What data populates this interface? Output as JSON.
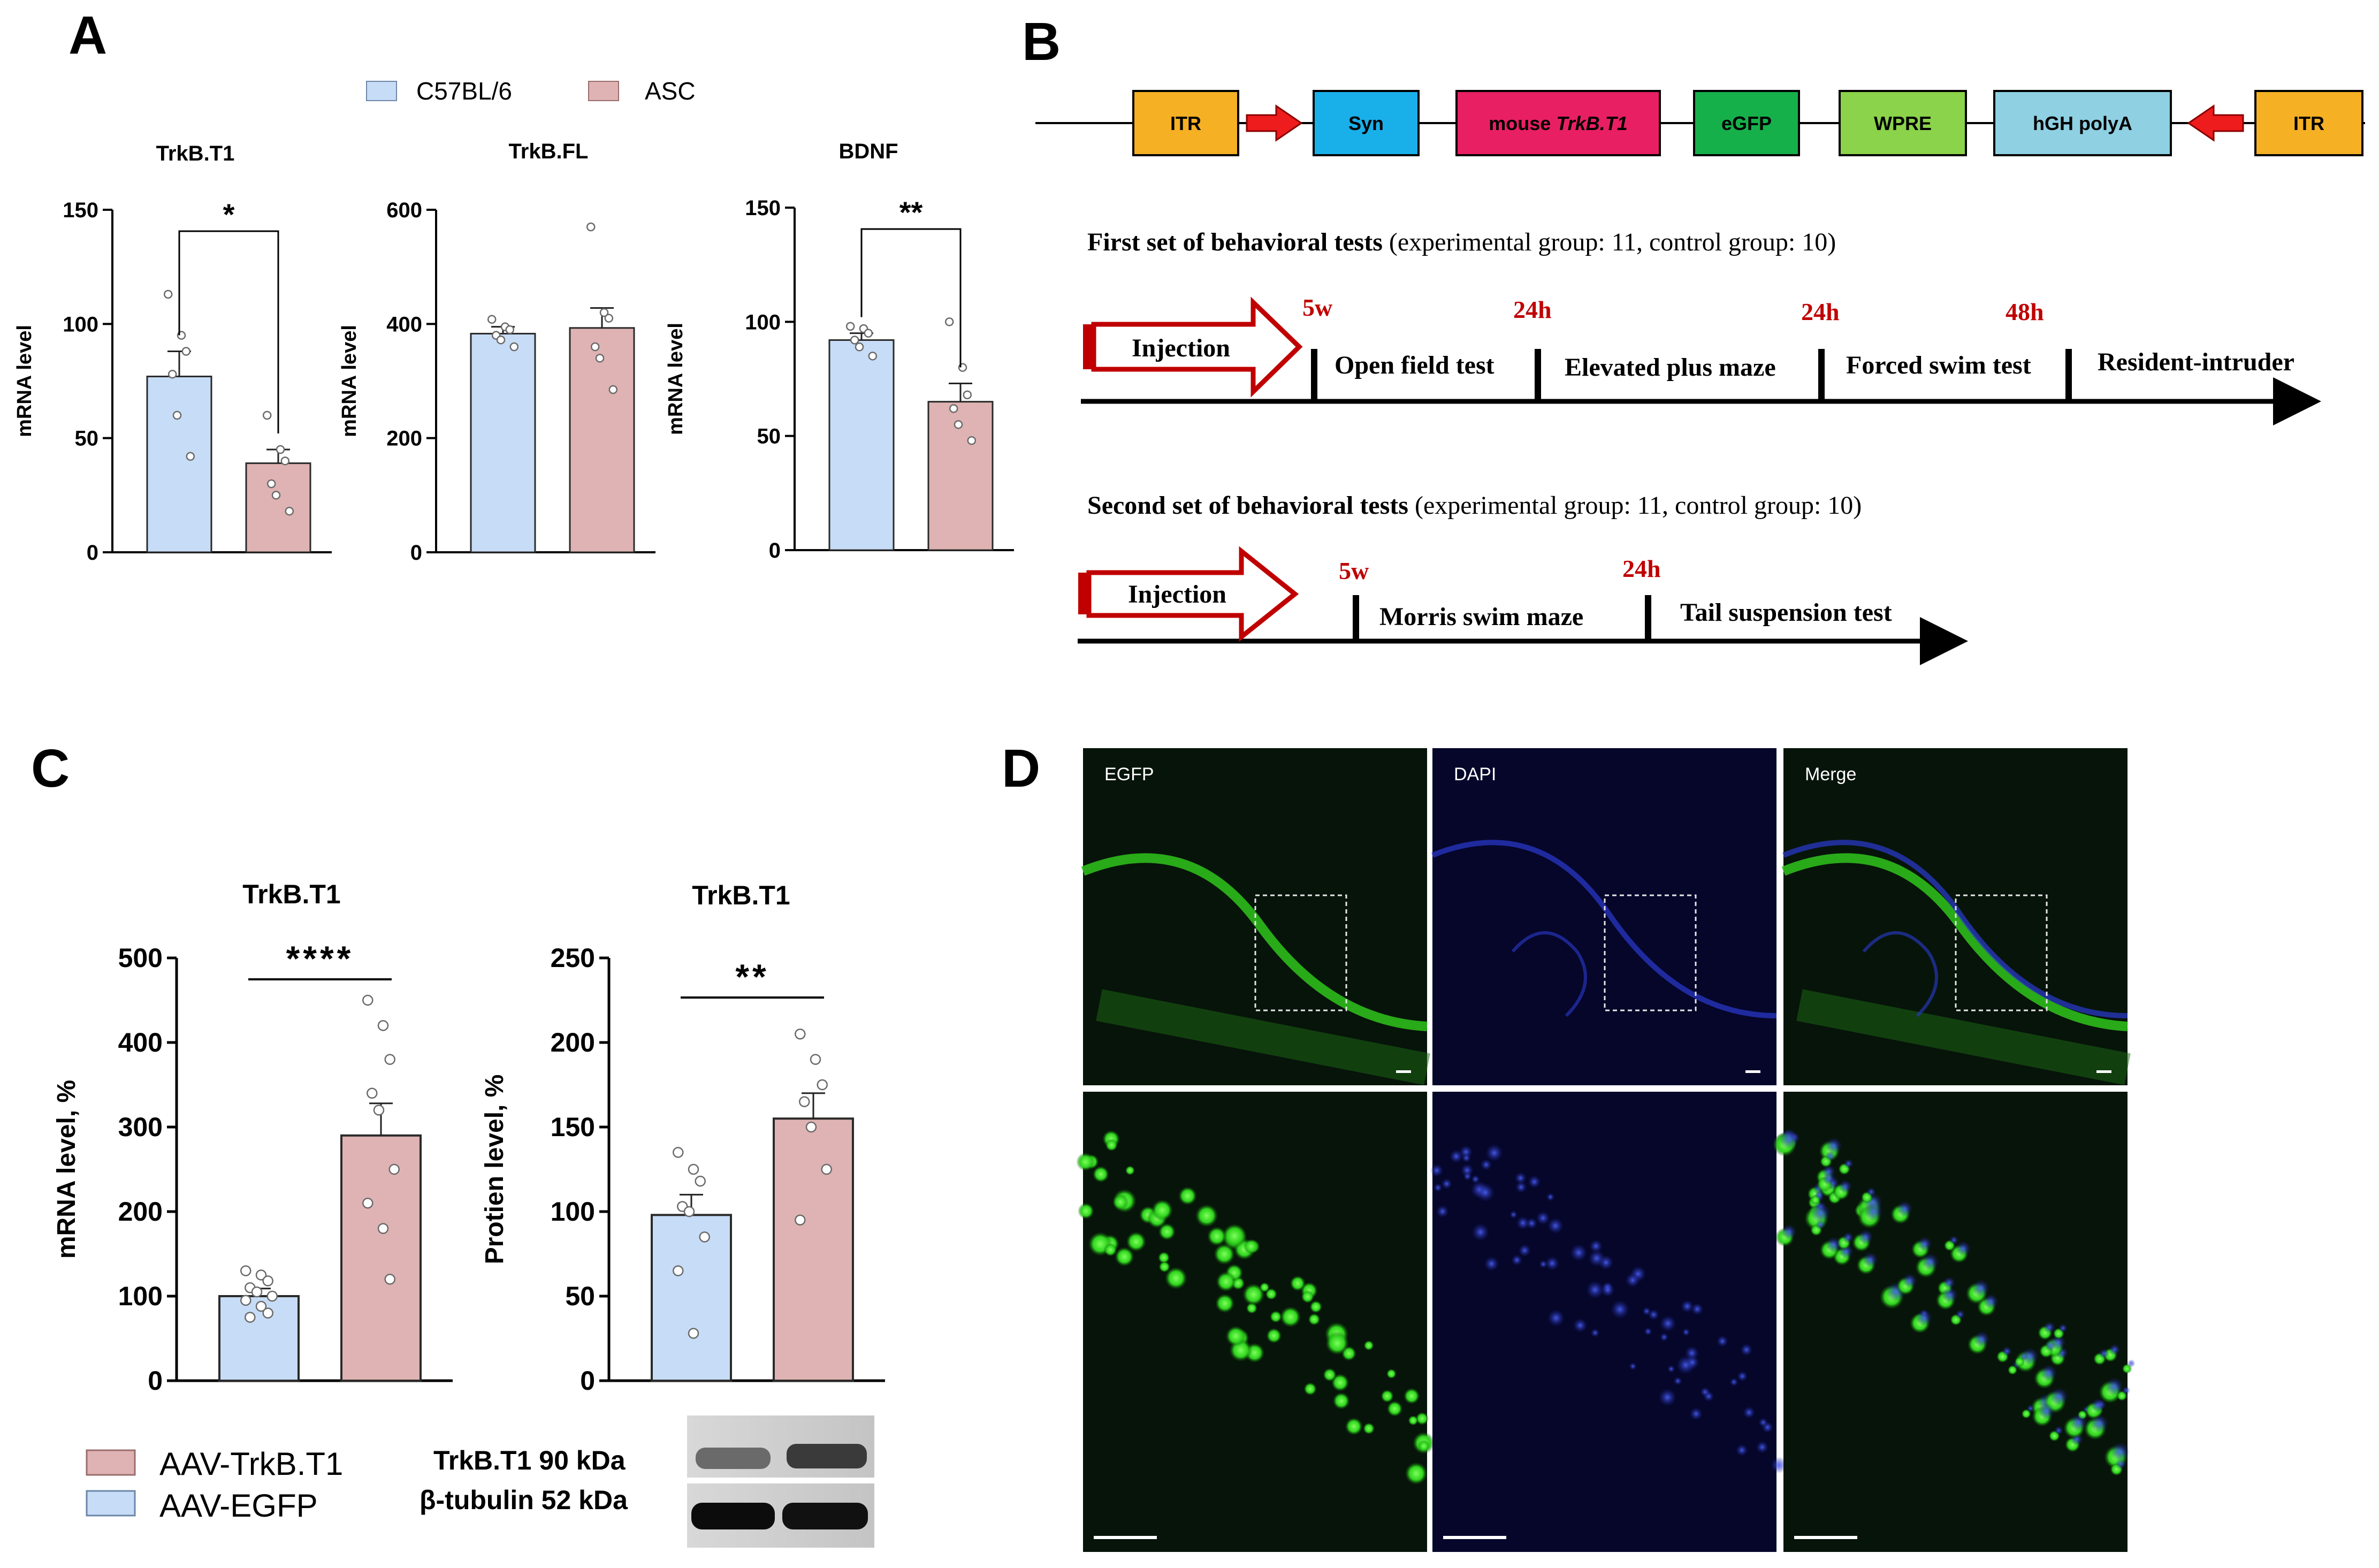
{
  "panels": {
    "A": {
      "letter": "A"
    },
    "B": {
      "letter": "B"
    },
    "C": {
      "letter": "C"
    },
    "D": {
      "letter": "D"
    }
  },
  "colors": {
    "blue_fill": "#c7dcf6",
    "pink_fill": "#dfb3b3",
    "red_accent": "#c00000",
    "itr": "#f5b024",
    "syn": "#19b0ea",
    "trkb": "#e91f63",
    "egfp": "#16b04b",
    "wpre": "#8bd34a",
    "polya": "#8fd0e3",
    "micro_bg": "#0a0d0a"
  },
  "legend_a": {
    "items": [
      {
        "label": "C57BL/6",
        "color": "#c7dcf6"
      },
      {
        "label": "ASC",
        "color": "#dfb3b3"
      }
    ]
  },
  "chart_data": [
    {
      "type": "bar",
      "panel": "A",
      "title": "TrkB.T1",
      "ylabel": "mRNA level",
      "categories": [
        "C57BL/6",
        "ASC"
      ],
      "values": [
        77,
        39
      ],
      "errors": [
        11,
        6
      ],
      "points": [
        [
          113,
          95,
          88,
          78,
          60,
          42
        ],
        [
          60,
          45,
          40,
          30,
          25,
          18
        ]
      ],
      "ylim": [
        0,
        150
      ],
      "yticks": [
        "0",
        "50",
        "100",
        "150"
      ],
      "significance": "*"
    },
    {
      "type": "bar",
      "panel": "A",
      "title": "TrkB.FL",
      "ylabel": "mRNA level",
      "categories": [
        "C57BL/6",
        "ASC"
      ],
      "values": [
        383,
        393
      ],
      "errors": [
        12,
        35
      ],
      "points": [
        [
          408,
          395,
          390,
          380,
          372,
          360
        ],
        [
          570,
          420,
          410,
          360,
          340,
          285
        ]
      ],
      "ylim": [
        0,
        600
      ],
      "yticks": [
        "0",
        "200",
        "400",
        "600"
      ],
      "significance": ""
    },
    {
      "type": "bar",
      "panel": "A",
      "title": "BDNF",
      "ylabel": "mRNA level",
      "categories": [
        "C57BL/6",
        "ASC"
      ],
      "values": [
        92,
        65
      ],
      "errors": [
        3,
        8
      ],
      "points": [
        [
          98,
          97,
          95,
          92,
          89,
          85
        ],
        [
          100,
          80,
          68,
          62,
          55,
          48
        ]
      ],
      "ylim": [
        0,
        150
      ],
      "yticks": [
        "0",
        "50",
        "100",
        "150"
      ],
      "significance": "**"
    },
    {
      "type": "bar",
      "panel": "C",
      "title": "TrkB.T1",
      "ylabel": "mRNA level, %",
      "categories": [
        "AAV-EGFP",
        "AAV-TrkB.T1"
      ],
      "values": [
        100,
        290
      ],
      "errors": [
        9,
        38
      ],
      "points": [
        [
          130,
          125,
          118,
          110,
          105,
          100,
          95,
          88,
          80,
          75
        ],
        [
          450,
          420,
          380,
          340,
          320,
          250,
          210,
          180,
          120
        ]
      ],
      "ylim": [
        0,
        500
      ],
      "yticks": [
        "0",
        "100",
        "200",
        "300",
        "400",
        "500"
      ],
      "significance": "****"
    },
    {
      "type": "bar",
      "panel": "C",
      "title": "TrkB.T1",
      "ylabel": "Protien level, %",
      "categories": [
        "AAV-EGFP",
        "AAV-TrkB.T1"
      ],
      "values": [
        98,
        155
      ],
      "errors": [
        12,
        15
      ],
      "points": [
        [
          135,
          125,
          118,
          103,
          100,
          85,
          65,
          28
        ],
        [
          205,
          190,
          175,
          165,
          150,
          125,
          95
        ]
      ],
      "ylim": [
        0,
        250
      ],
      "yticks": [
        "0",
        "50",
        "100",
        "150",
        "200",
        "250"
      ],
      "significance": "**"
    }
  ],
  "construct": {
    "boxes": [
      {
        "label": "ITR",
        "color": "#f5b024"
      },
      {
        "label": "Syn",
        "color": "#19b0ea"
      },
      {
        "label": "mouse ",
        "italic": "TrkB.T1",
        "color": "#e91f63"
      },
      {
        "label": "eGFP",
        "color": "#16b04b"
      },
      {
        "label": "WPRE",
        "color": "#8bd34a"
      },
      {
        "label": "hGH polyA",
        "color": "#8fd0e3"
      },
      {
        "label": "ITR",
        "color": "#f5b024"
      }
    ]
  },
  "timeline1": {
    "heading_bold": "First set of behavioral tests",
    "heading_rest": " (experimental group: 11, control group: 10)",
    "injection": "Injection",
    "times": [
      "5w",
      "24h",
      "24h",
      "48h"
    ],
    "tests": [
      "Open field test",
      "Elevated plus maze",
      "Forced swim test",
      "Resident-intruder"
    ]
  },
  "timeline2": {
    "heading_bold": "Second set of behavioral tests",
    "heading_rest": " (experimental group: 11, control group: 10)",
    "injection": "Injection",
    "times": [
      "5w",
      "24h"
    ],
    "tests": [
      "Morris swim maze",
      "Tail suspension test"
    ]
  },
  "legend_c": {
    "items": [
      {
        "label": "AAV-TrkB.T1",
        "color": "#dfb3b3"
      },
      {
        "label": "AAV-EGFP",
        "color": "#c7dcf6"
      }
    ]
  },
  "western": {
    "labels": [
      "TrkB.T1 90 kDa",
      "β-tubulin 52 kDa"
    ]
  },
  "micrographs": {
    "labels": [
      "EGFP",
      "DAPI",
      "Merge"
    ]
  }
}
